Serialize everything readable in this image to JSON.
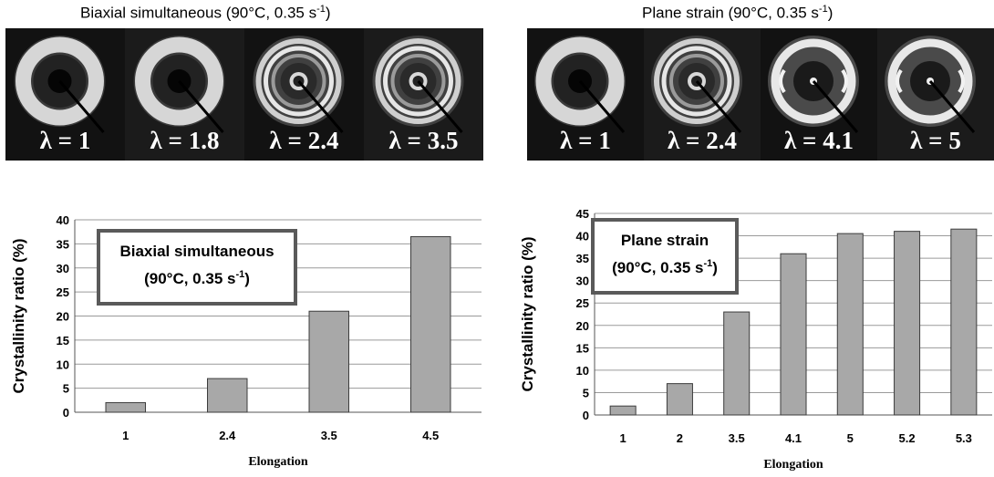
{
  "figures": [
    {
      "strip_title": "Biaxial simultaneous (90°C, 0.35 s",
      "strip_title_exp": "-1",
      "patterns": [
        {
          "label": "λ = 1",
          "rings": "plain"
        },
        {
          "label": "λ = 1.8",
          "rings": "plain"
        },
        {
          "label": "λ = 2.4",
          "rings": "multi"
        },
        {
          "label": "λ = 3.5",
          "rings": "multi"
        }
      ]
    },
    {
      "strip_title": "Plane strain (90°C, 0.35 s",
      "strip_title_exp": "-1",
      "patterns": [
        {
          "label": "λ = 1",
          "rings": "plain"
        },
        {
          "label": "λ = 2.4",
          "rings": "multi"
        },
        {
          "label": "λ = 4.1",
          "rings": "arcs"
        },
        {
          "label": "λ = 5",
          "rings": "arcs"
        }
      ]
    }
  ],
  "chart_data": [
    {
      "type": "bar",
      "box_line1": "Biaxial simultaneous",
      "box_line2": "(90°C, 0.35 s",
      "box_exp": "-1",
      "box_close": ")",
      "xlabel": "Elongation",
      "ylabel": "Crystallinity ratio (%)",
      "categories": [
        "1",
        "2.4",
        "3.5",
        "4.5"
      ],
      "values": [
        2,
        7,
        21,
        36.5
      ],
      "ylim": [
        0,
        40
      ],
      "yticks": [
        0,
        5,
        10,
        15,
        20,
        25,
        30,
        35,
        40
      ],
      "grid": true,
      "bar_color": "#a8a8a8"
    },
    {
      "type": "bar",
      "box_line1": "Plane strain",
      "box_line2": "(90°C, 0.35 s",
      "box_exp": "-1",
      "box_close": ")",
      "xlabel": "Elongation",
      "ylabel": "Crystallinity ratio (%)",
      "categories": [
        "1",
        "2",
        "3.5",
        "4.1",
        "5",
        "5.2",
        "5.3"
      ],
      "values": [
        2,
        7,
        23,
        36,
        40.5,
        41,
        41.5
      ],
      "ylim": [
        0,
        45
      ],
      "yticks": [
        0,
        5,
        10,
        15,
        20,
        25,
        30,
        35,
        40,
        45
      ],
      "grid": true,
      "bar_color": "#a8a8a8"
    }
  ]
}
